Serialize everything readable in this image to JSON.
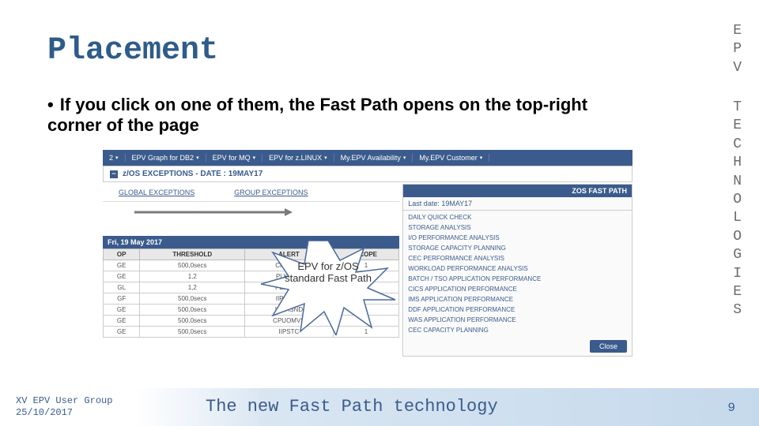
{
  "title": "Placement",
  "bullet_text": "If you click on one of them, the Fast Path opens on the top-right corner of the page",
  "side_epv": "E\nP\nV",
  "side_tech": "T\nE\nC\nH\nN\nO\nL\nO\nG\nI\nE\nS",
  "nav": {
    "items": [
      "2",
      "EPV Graph for DB2",
      "EPV for MQ",
      "EPV for z.LINUX",
      "My.EPV Availability",
      "My.EPV Customer"
    ]
  },
  "exceptions_header": "z/OS EXCEPTIONS - DATE : 19MAY17",
  "tabs": {
    "global": "GLOBAL EXCEPTIONS",
    "group": "GROUP EXCEPTIONS"
  },
  "date_bar": "Fri, 19 May 2017",
  "table": {
    "columns": [
      "OP",
      "THRESHOLD",
      "ALERT",
      "SCOPE"
    ],
    "rows": [
      [
        "GE",
        "500,0secs",
        "CPUCOB",
        "1"
      ],
      [
        "GE",
        "1,2",
        "PLKPIH1",
        "1"
      ],
      [
        "GL",
        "1,2",
        "PLRTHIG",
        "1"
      ],
      [
        "GF",
        "500,0secs",
        "IIPOMVS",
        ""
      ],
      [
        "GE",
        "500,0secs",
        "IOPASND",
        "1"
      ],
      [
        "GE",
        "500,0secs",
        "CPUOMVS",
        "1"
      ],
      [
        "GE",
        "500,0secs",
        "IIPSTC",
        "1"
      ]
    ]
  },
  "fastpath": {
    "header": "ZOS FAST PATH",
    "date_label": "Last date: 19MAY17",
    "items": [
      "DAILY QUICK CHECK",
      "STORAGE ANALYSIS",
      "I/O PERFORMANCE ANALYSIS",
      "STORAGE CAPACITY PLANNING",
      "CEC PERFORMANCE ANALYSIS",
      "WORKLOAD PERFORMANCE ANALYSIS",
      "BATCH / TSO APPLICATION PERFORMANCE",
      "CICS APPLICATION PERFORMANCE",
      "IMS APPLICATION PERFORMANCE",
      "DDF APPLICATION PERFORMANCE",
      "WAS APPLICATION PERFORMANCE",
      "CEC CAPACITY PLANNING"
    ],
    "close_label": "Close"
  },
  "callout_text": "EPV for z/OS standard Fast Path",
  "footer": {
    "left_line1": "XV EPV User Group",
    "left_line2": "25/10/2017",
    "center": "The new Fast Path technology",
    "page": "9"
  },
  "colors": {
    "title": "#2e5c8a",
    "navbar": "#3a5b8c",
    "side_text": "#6b6b6b",
    "footer_grad_start": "#d9e6f2",
    "footer_grad_end": "#c5d9ec"
  }
}
